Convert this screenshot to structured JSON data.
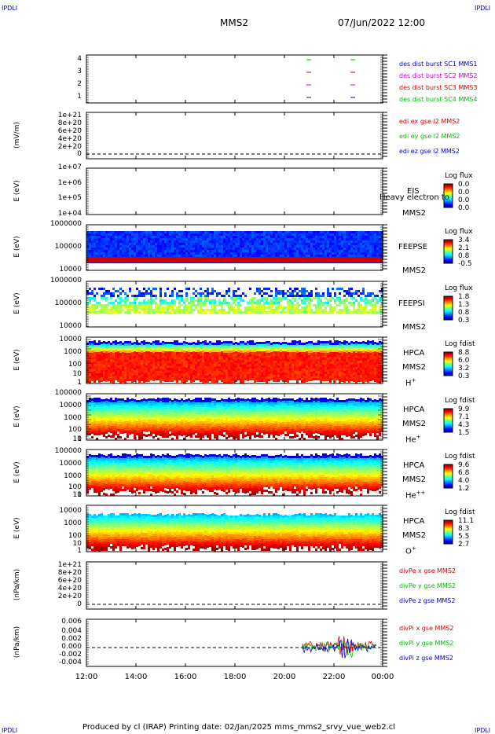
{
  "corners": {
    "tl": "IPDLI",
    "tr": "IPDLI",
    "bl": "IPDLI",
    "br": "IPDLI"
  },
  "header": {
    "spacecraft": "MMS2",
    "datetime": "07/Jun/2022 12:00"
  },
  "colors": {
    "mms1": "#0000cc",
    "mms2": "#cc00cc",
    "mms3": "#cc0000",
    "mms4": "#00bb00",
    "x": "#dd0000",
    "y": "#00bb00",
    "z": "#0000cc"
  },
  "chart_data": [
    {
      "type": "line",
      "id": "burst",
      "ylim": [
        0.5,
        4.5
      ],
      "yticks": [
        "4",
        "3",
        "2",
        "1"
      ],
      "legend": [
        {
          "label": "des dist burst SC1 MMS1",
          "color": "mms1"
        },
        {
          "label": "des dist burst SC2 MMS2",
          "color": "mms2"
        },
        {
          "label": "des dist burst SC3 MMS3",
          "color": "mms3"
        },
        {
          "label": "des dist burst SC4 MMS4",
          "color": "mms4"
        }
      ]
    },
    {
      "type": "line",
      "id": "edi",
      "ylabel": "(mV/m)",
      "yticks": [
        "1e+21",
        "8e+20",
        "6e+20",
        "4e+20",
        "2e+20",
        "0"
      ],
      "legend": [
        {
          "label": "edi ex gse l2 MMS2",
          "color": "x"
        },
        {
          "label": "edi ey gse l2 MMS2",
          "color": "y"
        },
        {
          "label": "edi ez gse l2 MMS2",
          "color": "z"
        }
      ]
    },
    {
      "type": "heatmap",
      "id": "eis",
      "ylabel": "E (eV)",
      "yticks": [
        "1e+07",
        "1e+06",
        "1e+05",
        "1e+04"
      ],
      "instrument": "EIS",
      "sc": "MMS2",
      "overlay": "Heavy electron to",
      "cb_title": "Log flux",
      "cb_values": [
        "0.0",
        "0.0",
        "0.0",
        "0.0"
      ]
    },
    {
      "type": "heatmap",
      "id": "feepse",
      "ylabel": "E (eV)",
      "yticks": [
        "1000000",
        "100000",
        "10000"
      ],
      "instrument": "FEEPSE",
      "sc": "MMS2",
      "cb_title": "Log flux",
      "cb_values": [
        "3.4",
        "2.1",
        "0.8",
        "-0.5"
      ]
    },
    {
      "type": "heatmap",
      "id": "feepsi",
      "ylabel": "E (eV)",
      "yticks": [
        "1000000",
        "100000",
        "10000"
      ],
      "instrument": "FEEPSI",
      "sc": "MMS2",
      "cb_title": "Log flux",
      "cb_values": [
        "1.8",
        "1.3",
        "0.8",
        "0.3"
      ]
    },
    {
      "type": "heatmap",
      "id": "hpca_h",
      "ylabel": "E (eV)",
      "yticks": [
        "10000",
        "1000",
        "100",
        "10",
        "1"
      ],
      "instrument": "HPCA",
      "sc": "MMS2",
      "species": "H",
      "species_sup": "+",
      "cb_title": "Log fdist",
      "cb_values": [
        "8.8",
        "6.0",
        "3.2",
        "0.3"
      ]
    },
    {
      "type": "heatmap",
      "id": "hpca_he",
      "ylabel": "E (eV)",
      "yticks": [
        "100000",
        "10000",
        "1000",
        "100",
        "10",
        "1"
      ],
      "instrument": "HPCA",
      "sc": "MMS2",
      "species": "He",
      "species_sup": "+",
      "cb_title": "Log fdist",
      "cb_values": [
        "9.9",
        "7.1",
        "4.3",
        "1.5"
      ]
    },
    {
      "type": "heatmap",
      "id": "hpca_hepp",
      "ylabel": "E (eV)",
      "yticks": [
        "100000",
        "10000",
        "1000",
        "100",
        "10",
        "1"
      ],
      "instrument": "HPCA",
      "sc": "MMS2",
      "species": "He",
      "species_sup": "++",
      "cb_title": "Log fdist",
      "cb_values": [
        "9.6",
        "6.8",
        "4.0",
        "1.2"
      ]
    },
    {
      "type": "heatmap",
      "id": "hpca_o",
      "ylabel": "E (eV)",
      "yticks": [
        "10000",
        "1000",
        "100",
        "10",
        "1"
      ],
      "instrument": "HPCA",
      "sc": "MMS2",
      "species": "O",
      "species_sup": "+",
      "cb_title": "Log fdist",
      "cb_values": [
        "11.1",
        "8.3",
        "5.5",
        "2.7"
      ]
    },
    {
      "type": "line",
      "id": "divpe",
      "ylabel": "(nPa/km)",
      "yticks": [
        "1e+21",
        "8e+20",
        "6e+20",
        "4e+20",
        "2e+20",
        "0"
      ],
      "legend": [
        {
          "label": "divPe x gse MMS2",
          "color": "x"
        },
        {
          "label": "divPe y gse MMS2",
          "color": "y"
        },
        {
          "label": "divPe z gse MMS2",
          "color": "z"
        }
      ]
    },
    {
      "type": "line",
      "id": "divpi",
      "ylabel": "(nPa/km)",
      "ylim": [
        -0.005,
        0.007
      ],
      "yticks": [
        "0.006",
        "0.004",
        "0.002",
        "0.000",
        "-0.002",
        "-0.004"
      ],
      "legend": [
        {
          "label": "divPi x gse MMS2",
          "color": "x"
        },
        {
          "label": "divPi y gse MMS2",
          "color": "y"
        },
        {
          "label": "divPi z gse MMS2",
          "color": "z"
        }
      ],
      "data_start": "20:45",
      "data_end": "23:45"
    }
  ],
  "xaxis": {
    "ticks": [
      "12:00",
      "14:00",
      "16:00",
      "18:00",
      "20:00",
      "22:00",
      "00:00"
    ]
  },
  "footer": {
    "text": "Produced by cl (IRAP)   Printing date: 02/Jan/2025   mms_mms2_srvy_vue_web2.cl"
  }
}
